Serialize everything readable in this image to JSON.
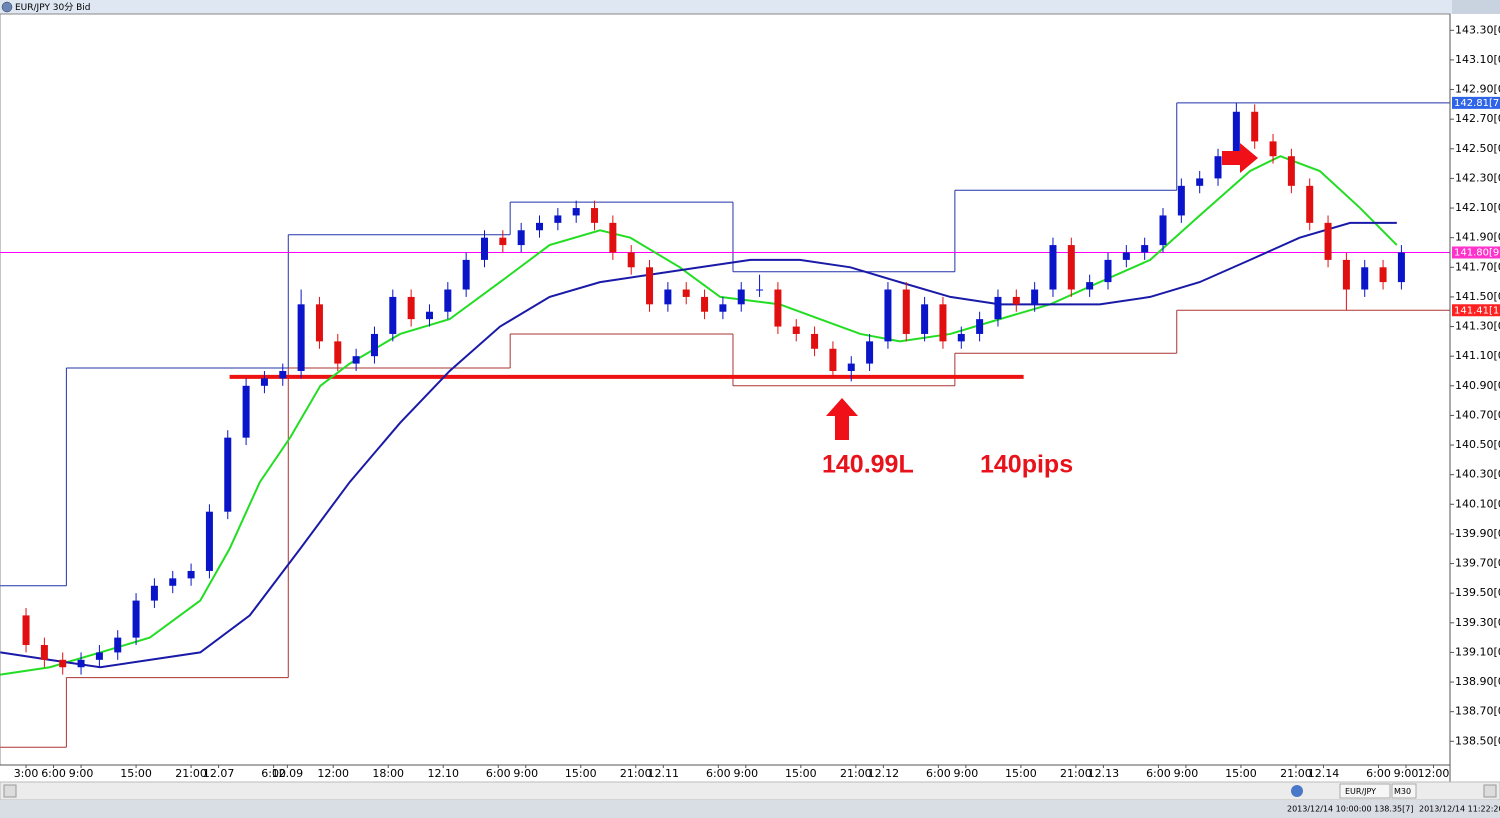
{
  "window": {
    "title": "EUR/JPY 30分 Bid",
    "status": {
      "symbol": "EUR/JPY",
      "timeframe": "M30",
      "cursor": "2013/12/14 10:00:00 138.35[7]",
      "clock": "2013/12/14 11:22:20"
    }
  },
  "chart_data": {
    "type": "candlestick",
    "annotations": [
      "140.99L",
      "140pips"
    ],
    "xlim": [
      -2.84,
      155.3
    ],
    "ylim": [
      138.34,
      143.41
    ],
    "yticks": [
      {
        "value": 138.5,
        "label": "138.50[0"
      },
      {
        "value": 138.7,
        "label": "138.70[0"
      },
      {
        "value": 138.9,
        "label": "138.90[0"
      },
      {
        "value": 139.1,
        "label": "139.10[0"
      },
      {
        "value": 139.3,
        "label": "139.30[0"
      },
      {
        "value": 139.5,
        "label": "139.50[0"
      },
      {
        "value": 139.7,
        "label": "139.70[0"
      },
      {
        "value": 139.9,
        "label": "139.90[0"
      },
      {
        "value": 140.1,
        "label": "140.10[0"
      },
      {
        "value": 140.3,
        "label": "140.30[0"
      },
      {
        "value": 140.5,
        "label": "140.50[0"
      },
      {
        "value": 140.7,
        "label": "140.70[0"
      },
      {
        "value": 140.9,
        "label": "140.90[0"
      },
      {
        "value": 141.1,
        "label": "141.10[0"
      },
      {
        "value": 141.3,
        "label": "141.30[0"
      },
      {
        "value": 141.5,
        "label": "141.50[0"
      },
      {
        "value": 141.7,
        "label": "141.70[0"
      },
      {
        "value": 141.9,
        "label": "141.90[0"
      },
      {
        "value": 142.1,
        "label": "142.10[0"
      },
      {
        "value": 142.3,
        "label": "142.30[0"
      },
      {
        "value": 142.5,
        "label": "142.50[0"
      },
      {
        "value": 142.7,
        "label": "142.70[0"
      },
      {
        "value": 142.9,
        "label": "142.90[0"
      },
      {
        "value": 143.1,
        "label": "143.10[0"
      },
      {
        "value": 143.3,
        "label": "143.30[0"
      }
    ],
    "xticks": [
      {
        "value": 0,
        "label": "3:00"
      },
      {
        "value": 3,
        "label": "6:00"
      },
      {
        "value": 6,
        "label": "9:00"
      },
      {
        "value": 12,
        "label": "15:00"
      },
      {
        "value": 18,
        "label": "21:00"
      },
      {
        "value": 21,
        "label": "12.07"
      },
      {
        "value": 27,
        "label": "6:00"
      },
      {
        "value": 28.5,
        "label": "12.09"
      },
      {
        "value": 33.5,
        "label": "12:00"
      },
      {
        "value": 39.5,
        "label": "18:00"
      },
      {
        "value": 45.5,
        "label": "12.10"
      },
      {
        "value": 51.5,
        "label": "6:00"
      },
      {
        "value": 54.5,
        "label": "9:00"
      },
      {
        "value": 60.5,
        "label": "15:00"
      },
      {
        "value": 66.5,
        "label": "21:00"
      },
      {
        "value": 69.5,
        "label": "12.11"
      },
      {
        "value": 75.5,
        "label": "6:00"
      },
      {
        "value": 78.5,
        "label": "9:00"
      },
      {
        "value": 84.5,
        "label": "15:00"
      },
      {
        "value": 90.5,
        "label": "21:00"
      },
      {
        "value": 93.5,
        "label": "12.12"
      },
      {
        "value": 99.5,
        "label": "6:00"
      },
      {
        "value": 102.5,
        "label": "9:00"
      },
      {
        "value": 108.5,
        "label": "15:00"
      },
      {
        "value": 114.5,
        "label": "21:00"
      },
      {
        "value": 117.5,
        "label": "12.13"
      },
      {
        "value": 123.5,
        "label": "6:00"
      },
      {
        "value": 126.5,
        "label": "9:00"
      },
      {
        "value": 132.5,
        "label": "15:00"
      },
      {
        "value": 138.5,
        "label": "21:00"
      },
      {
        "value": 141.5,
        "label": "12.14"
      },
      {
        "value": 147.5,
        "label": "6:00"
      },
      {
        "value": 150.5,
        "label": "9:00"
      },
      {
        "value": 153.5,
        "label": "12:00"
      }
    ],
    "up_color": "#0a14c8",
    "down_color": "#e01010",
    "x": [
      0,
      2,
      4,
      6,
      8,
      10,
      12,
      14,
      16,
      18,
      20,
      22,
      24,
      26,
      28,
      30,
      32,
      34,
      36,
      38,
      40,
      42,
      44,
      46,
      48,
      50,
      52,
      54,
      56,
      58,
      60,
      62,
      64,
      66,
      68,
      70,
      72,
      74,
      76,
      78,
      80,
      82,
      84,
      86,
      88,
      90,
      92,
      94,
      96,
      98,
      100,
      102,
      104,
      106,
      108,
      110,
      112,
      114,
      116,
      118,
      120,
      122,
      124,
      126,
      128,
      130,
      132,
      134,
      136,
      138,
      140,
      142,
      144,
      146,
      148,
      150
    ],
    "open": [
      139.35,
      139.15,
      139.05,
      139.0,
      139.05,
      139.1,
      139.2,
      139.45,
      139.55,
      139.6,
      139.65,
      140.05,
      140.55,
      140.9,
      140.95,
      141.0,
      141.45,
      141.2,
      141.05,
      141.1,
      141.25,
      141.5,
      141.35,
      141.4,
      141.55,
      141.75,
      141.9,
      141.85,
      141.95,
      142.0,
      142.05,
      142.1,
      142.0,
      141.8,
      141.7,
      141.45,
      141.55,
      141.5,
      141.4,
      141.45,
      141.55,
      141.55,
      141.3,
      141.25,
      141.15,
      141.0,
      141.05,
      141.2,
      141.55,
      141.25,
      141.45,
      141.2,
      141.25,
      141.35,
      141.5,
      141.45,
      141.55,
      141.85,
      141.55,
      141.6,
      141.75,
      141.8,
      141.85,
      142.05,
      142.25,
      142.3,
      142.45,
      142.75,
      142.55,
      142.45,
      142.25,
      142.0,
      141.75,
      141.55,
      141.7,
      141.6
    ],
    "high": [
      139.4,
      139.2,
      139.1,
      139.1,
      139.15,
      139.25,
      139.5,
      139.6,
      139.65,
      139.7,
      140.1,
      140.6,
      140.95,
      141.0,
      141.05,
      141.55,
      141.5,
      141.25,
      141.15,
      141.3,
      141.55,
      141.55,
      141.45,
      141.6,
      141.8,
      141.95,
      141.95,
      142.0,
      142.05,
      142.1,
      142.15,
      142.15,
      142.05,
      141.85,
      141.75,
      141.6,
      141.6,
      141.55,
      141.5,
      141.6,
      141.65,
      141.6,
      141.35,
      141.3,
      141.2,
      141.1,
      141.25,
      141.6,
      141.6,
      141.5,
      141.5,
      141.3,
      141.4,
      141.55,
      141.55,
      141.6,
      141.9,
      141.9,
      141.65,
      141.8,
      141.85,
      141.9,
      142.1,
      142.3,
      142.35,
      142.5,
      142.81,
      142.8,
      142.6,
      142.5,
      142.3,
      142.05,
      141.8,
      141.75,
      141.75,
      141.85
    ],
    "low": [
      139.1,
      139.0,
      138.95,
      138.95,
      139.0,
      139.05,
      139.15,
      139.4,
      139.5,
      139.55,
      139.6,
      140.0,
      140.5,
      140.85,
      140.9,
      140.95,
      141.15,
      141.0,
      141.0,
      141.05,
      141.2,
      141.3,
      141.3,
      141.35,
      141.5,
      141.7,
      141.8,
      141.8,
      141.9,
      141.95,
      142.0,
      141.95,
      141.75,
      141.65,
      141.4,
      141.4,
      141.45,
      141.35,
      141.35,
      141.4,
      141.5,
      141.25,
      141.2,
      141.1,
      140.95,
      140.93,
      141.0,
      141.15,
      141.2,
      141.2,
      141.15,
      141.15,
      141.2,
      141.3,
      141.4,
      141.4,
      141.5,
      141.5,
      141.5,
      141.55,
      141.7,
      141.75,
      141.8,
      142.0,
      142.2,
      142.25,
      142.4,
      142.5,
      142.4,
      142.2,
      141.95,
      141.7,
      141.41,
      141.5,
      141.55,
      141.55
    ],
    "close": [
      139.15,
      139.05,
      139.0,
      139.05,
      139.1,
      139.2,
      139.45,
      139.55,
      139.6,
      139.65,
      140.05,
      140.55,
      140.9,
      140.95,
      141.0,
      141.45,
      141.2,
      141.05,
      141.1,
      141.25,
      141.5,
      141.35,
      141.4,
      141.55,
      141.75,
      141.9,
      141.85,
      141.95,
      142.0,
      142.05,
      142.1,
      142.0,
      141.8,
      141.7,
      141.45,
      141.55,
      141.5,
      141.4,
      141.45,
      141.55,
      141.55,
      141.3,
      141.25,
      141.15,
      141.0,
      141.05,
      141.2,
      141.55,
      141.25,
      141.45,
      141.2,
      141.25,
      141.35,
      141.5,
      141.45,
      141.55,
      141.85,
      141.55,
      141.6,
      141.75,
      141.8,
      141.85,
      142.05,
      142.25,
      142.3,
      142.45,
      142.75,
      142.55,
      142.45,
      142.25,
      142.0,
      141.75,
      141.55,
      141.7,
      141.6,
      141.8
    ],
    "moving_averages": [
      {
        "color": "#22dd22",
        "x": [
          -2.8,
          2.6,
          8.1,
          13.5,
          19,
          22.2,
          25.5,
          28.8,
          32.1,
          35.3,
          40.8,
          46.2,
          51.7,
          57.1,
          62.6,
          65.9,
          71.3,
          75.7,
          82.2,
          86.6,
          91,
          95.3,
          100.8,
          106.2,
          111.7,
          117.1,
          122.6,
          128,
          133.5,
          136.8,
          141.1,
          145.5,
          149.5
        ],
        "values": [
          138.95,
          139.0,
          139.1,
          139.2,
          139.45,
          139.8,
          140.25,
          140.55,
          140.9,
          141.05,
          141.25,
          141.35,
          141.6,
          141.85,
          141.95,
          141.9,
          141.7,
          141.5,
          141.45,
          141.35,
          141.25,
          141.2,
          141.25,
          141.35,
          141.45,
          141.6,
          141.75,
          142.05,
          142.35,
          142.45,
          142.35,
          142.1,
          141.85
        ]
      },
      {
        "color": "#1a1aa8",
        "x": [
          -2.8,
          2.6,
          8.1,
          13.5,
          19,
          24.4,
          29.9,
          35.3,
          40.8,
          46.2,
          51.7,
          57.1,
          62.6,
          68,
          73.5,
          79,
          84.4,
          89.9,
          95.3,
          100.8,
          106.2,
          111.7,
          117.1,
          122.6,
          128,
          133.5,
          138.9,
          144.4,
          149.5
        ],
        "values": [
          139.1,
          139.05,
          139.0,
          139.05,
          139.1,
          139.35,
          139.8,
          140.25,
          140.65,
          141.0,
          141.3,
          141.5,
          141.6,
          141.65,
          141.7,
          141.75,
          141.75,
          141.7,
          141.6,
          141.5,
          141.45,
          141.45,
          141.45,
          141.5,
          141.6,
          141.75,
          141.9,
          142.0,
          142.0
        ]
      }
    ],
    "day_boxes": {
      "edges": [
        -2.8,
        4.4,
        28.6,
        52.8,
        77.1,
        101.3,
        125.5,
        155.3
      ],
      "high": [
        139.55,
        141.02,
        141.92,
        142.14,
        141.67,
        142.22,
        142.81
      ],
      "low": [
        138.46,
        138.93,
        141.02,
        141.25,
        140.9,
        141.12,
        141.41
      ],
      "high_color": "#2233aa",
      "low_color": "#aa3333"
    },
    "hlines": [
      {
        "value": 141.8,
        "color": "#ff00ff",
        "width": 1
      },
      {
        "value": 140.96,
        "x": [
          22.2,
          108.8
        ],
        "color": "#ee1111",
        "width": 4
      }
    ],
    "price_labels": [
      {
        "value": 142.81,
        "label": "142.81[7",
        "color": "#2e64e8"
      },
      {
        "value": 141.8,
        "label": "141.80[9",
        "color": "#ff33cc"
      },
      {
        "value": 141.41,
        "label": "141.41[1",
        "color": "#ff2020"
      }
    ]
  }
}
